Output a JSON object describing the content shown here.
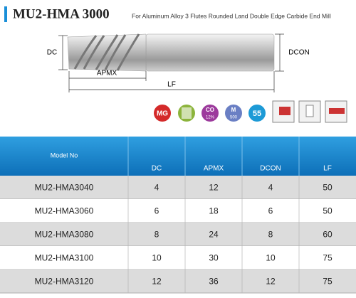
{
  "header": {
    "title": "MU2-HMA 3000",
    "subtitle": "For Aluminum Alloy 3 Flutes Rounded Land Double Edge Carbide End Mill"
  },
  "diagram": {
    "dc": "DC",
    "apmx": "APMX",
    "lf": "LF",
    "dcon": "DCON"
  },
  "icons": {
    "mg": "MG",
    "co": "CO",
    "co_pct": "12%",
    "m": "M",
    "m_val": "500",
    "angle": "55"
  },
  "table": {
    "columns": [
      "Model No",
      "DC",
      "APMX",
      "DCON",
      "LF"
    ],
    "rows": [
      [
        "MU2-HMA3040",
        "4",
        "12",
        "4",
        "50"
      ],
      [
        "MU2-HMA3060",
        "6",
        "18",
        "6",
        "50"
      ],
      [
        "MU2-HMA3080",
        "8",
        "24",
        "8",
        "60"
      ],
      [
        "MU2-HMA3100",
        "10",
        "30",
        "10",
        "75"
      ],
      [
        "MU2-HMA3120",
        "12",
        "36",
        "12",
        "75"
      ]
    ]
  }
}
